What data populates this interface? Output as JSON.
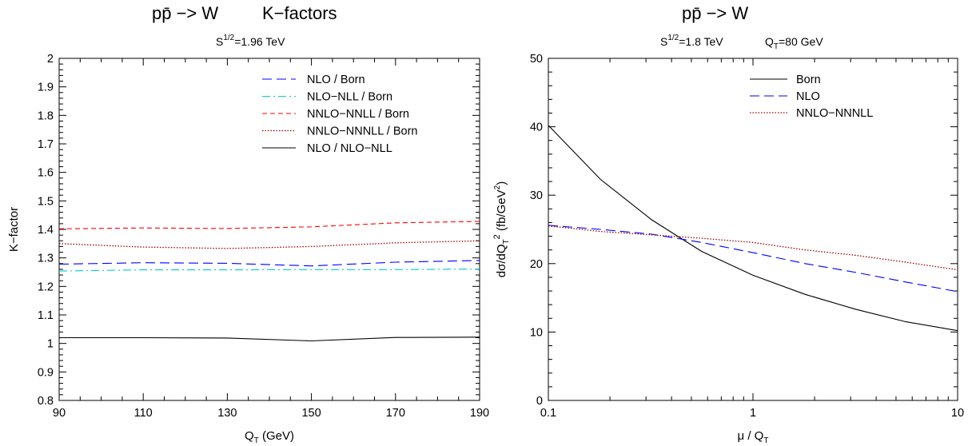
{
  "chart_data": [
    {
      "type": "line",
      "title_process": "pp̄ −> W",
      "title_suffix": "K−factors",
      "subtitle_prefix": "S",
      "subtitle_sup": "1/2",
      "subtitle_value": "=1.96 TeV",
      "xlabel_main": "Q",
      "xlabel_sub": "T",
      "xlabel_units": " (GeV)",
      "ylabel": "K−factor",
      "xlim": [
        90,
        190
      ],
      "ylim": [
        0.8,
        2.0
      ],
      "x_ticks": [
        "90",
        "110",
        "130",
        "150",
        "170",
        "190"
      ],
      "y_ticks": [
        "0.8",
        "0.9",
        "1",
        "1.1",
        "1.2",
        "1.3",
        "1.4",
        "1.5",
        "1.6",
        "1.7",
        "1.8",
        "1.9",
        "2"
      ],
      "legend_position": "top-right",
      "series": [
        {
          "name": "NLO / Born",
          "color": "#0000ff",
          "dash": "long-dash",
          "x": [
            90,
            110,
            130,
            150,
            170,
            190
          ],
          "y": [
            1.278,
            1.283,
            1.281,
            1.272,
            1.285,
            1.291
          ]
        },
        {
          "name": "NLO−NLL / Born",
          "color": "#00cccc",
          "dash": "dash-dot",
          "x": [
            90,
            110,
            130,
            150,
            170,
            190
          ],
          "y": [
            1.254,
            1.258,
            1.258,
            1.259,
            1.259,
            1.261
          ]
        },
        {
          "name": "NNLO−NNLL / Born",
          "color": "#ff0000",
          "dash": "short-dash",
          "x": [
            90,
            110,
            130,
            150,
            170,
            190
          ],
          "y": [
            1.402,
            1.405,
            1.403,
            1.409,
            1.423,
            1.428
          ]
        },
        {
          "name": "NNLO−NNNLL / Born",
          "color": "#990000",
          "dash": "dotted",
          "x": [
            90,
            110,
            130,
            150,
            170,
            190
          ],
          "y": [
            1.35,
            1.338,
            1.333,
            1.34,
            1.353,
            1.36
          ]
        },
        {
          "name": "NLO / NLO−NLL",
          "color": "#000000",
          "dash": "solid",
          "x": [
            90,
            110,
            130,
            150,
            170,
            190
          ],
          "y": [
            1.02,
            1.02,
            1.019,
            1.009,
            1.021,
            1.022
          ]
        }
      ]
    },
    {
      "type": "line",
      "title_process": "pp̄ −> W",
      "subtitle_prefix": "S",
      "subtitle_sup": "1/2",
      "subtitle_value": "=1.8 TeV",
      "subtitle2_main": "Q",
      "subtitle2_sub": "T",
      "subtitle2_value": "=80 GeV",
      "xlabel_main": "μ / Q",
      "xlabel_sub": "T",
      "ylabel_a": "dσ/dQ",
      "ylabel_b": "T",
      "ylabel_c": "2",
      "ylabel_d": " (fb/GeV",
      "ylabel_e": "2",
      "ylabel_f": ")",
      "x_scale": "log",
      "xlim": [
        0.1,
        10
      ],
      "ylim": [
        0,
        50
      ],
      "x_ticks": [
        "0.1",
        "1",
        "10"
      ],
      "y_ticks": [
        "0",
        "10",
        "20",
        "30",
        "40",
        "50"
      ],
      "legend_position": "top-right",
      "series": [
        {
          "name": "Born",
          "color": "#000000",
          "dash": "solid",
          "x": [
            0.1,
            0.18,
            0.32,
            0.56,
            1.0,
            1.8,
            3.2,
            5.6,
            10
          ],
          "y": [
            40.2,
            32.3,
            26.4,
            21.8,
            18.3,
            15.5,
            13.3,
            11.5,
            10.2
          ]
        },
        {
          "name": "NLO",
          "color": "#0000ff",
          "dash": "long-dash",
          "x": [
            0.1,
            0.18,
            0.32,
            0.56,
            1.0,
            1.8,
            3.2,
            5.6,
            10
          ],
          "y": [
            25.6,
            25.0,
            24.3,
            23.1,
            21.6,
            20.0,
            18.7,
            17.3,
            15.9
          ]
        },
        {
          "name": "NNLO−NNNLL",
          "color": "#990000",
          "dash": "dotted",
          "x": [
            0.1,
            0.18,
            0.32,
            0.56,
            1.0,
            1.8,
            3.2,
            5.6,
            10
          ],
          "y": [
            25.5,
            24.7,
            24.2,
            23.7,
            23.1,
            22.0,
            21.2,
            20.2,
            19.1
          ]
        }
      ]
    }
  ]
}
